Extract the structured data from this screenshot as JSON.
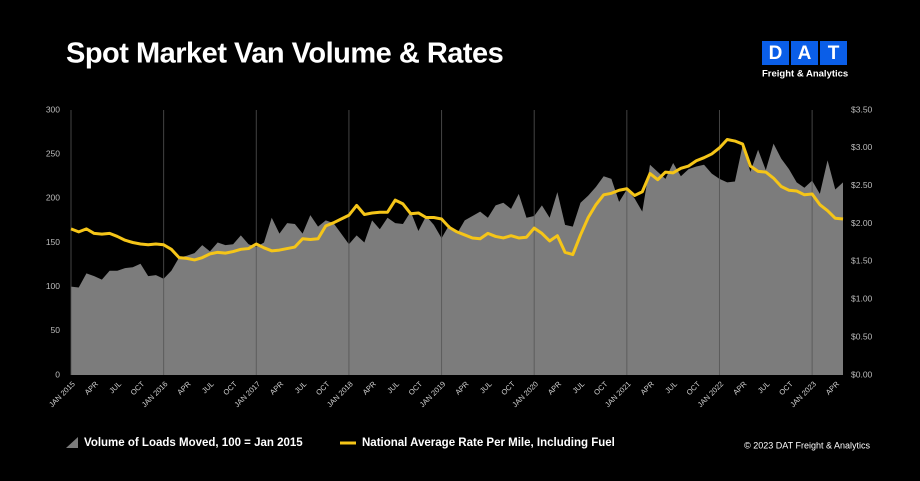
{
  "chart_data": {
    "type": "area-line",
    "title": "Spot Market Van Volume & Rates",
    "logo": {
      "letters": [
        "D",
        "A",
        "T"
      ],
      "subtitle": "Freight & Analytics"
    },
    "footer": "© 2023 DAT Freight & Analytics",
    "categories": [
      "JAN 2015",
      null,
      null,
      "APR",
      null,
      null,
      "JUL",
      null,
      null,
      "OCT",
      null,
      null,
      "JAN 2016",
      null,
      null,
      "APR",
      null,
      null,
      "JUL",
      null,
      null,
      "OCT",
      null,
      null,
      "JAN 2017",
      null,
      null,
      "APR",
      null,
      null,
      "JUL",
      null,
      null,
      "OCT",
      null,
      null,
      "JAN 2018",
      null,
      null,
      "APR",
      null,
      null,
      "JUL",
      null,
      null,
      "OCT",
      null,
      null,
      "JAN 2019",
      null,
      null,
      "APR",
      null,
      null,
      "JUL",
      null,
      null,
      "OCT",
      null,
      null,
      "JAN 2020",
      null,
      null,
      "APR",
      null,
      null,
      "JUL",
      null,
      null,
      "OCT",
      null,
      null,
      "JAN 2021",
      null,
      null,
      "APR",
      null,
      null,
      "JUL",
      null,
      null,
      "OCT",
      null,
      null,
      "JAN 2022",
      null,
      null,
      "APR",
      null,
      null,
      "JUL",
      null,
      null,
      "OCT",
      null,
      null,
      "JAN 2023",
      null,
      null,
      "APR",
      null
    ],
    "series": [
      {
        "name": "Volume of Loads Moved, 100 = Jan 2015",
        "color": "#7c7c7c",
        "kind": "area",
        "axis": "y",
        "values": [
          100,
          99,
          115,
          112,
          108,
          118,
          118,
          121,
          122,
          126,
          112,
          113,
          109,
          118,
          133,
          135,
          138,
          147,
          140,
          150,
          147,
          148,
          158,
          148,
          145,
          150,
          178,
          160,
          172,
          171,
          160,
          181,
          168,
          175,
          172,
          160,
          148,
          158,
          150,
          175,
          165,
          178,
          172,
          171,
          185,
          163,
          180,
          170,
          155,
          170,
          160,
          175,
          180,
          185,
          178,
          192,
          195,
          188,
          205,
          178,
          180,
          192,
          178,
          207,
          170,
          168,
          195,
          203,
          213,
          225,
          222,
          196,
          210,
          200,
          185,
          238,
          230,
          222,
          240,
          225,
          233,
          236,
          238,
          228,
          222,
          218,
          219,
          260,
          230,
          255,
          232,
          262,
          245,
          233,
          218,
          212,
          220,
          205,
          243,
          210,
          218
        ]
      },
      {
        "name": "National Average Rate Per Mile, Including Fuel",
        "color": "#f5c518",
        "kind": "line",
        "axis": "y2",
        "values": [
          1.93,
          1.89,
          1.93,
          1.87,
          1.86,
          1.87,
          1.83,
          1.78,
          1.75,
          1.73,
          1.72,
          1.73,
          1.72,
          1.66,
          1.55,
          1.54,
          1.52,
          1.55,
          1.6,
          1.62,
          1.61,
          1.63,
          1.66,
          1.67,
          1.73,
          1.68,
          1.64,
          1.65,
          1.67,
          1.69,
          1.8,
          1.79,
          1.8,
          1.97,
          2.01,
          2.06,
          2.11,
          2.24,
          2.12,
          2.14,
          2.15,
          2.15,
          2.31,
          2.26,
          2.13,
          2.14,
          2.08,
          2.08,
          2.06,
          1.95,
          1.89,
          1.85,
          1.81,
          1.8,
          1.87,
          1.83,
          1.81,
          1.84,
          1.81,
          1.82,
          1.94,
          1.87,
          1.77,
          1.84,
          1.62,
          1.59,
          1.85,
          2.08,
          2.25,
          2.38,
          2.4,
          2.44,
          2.46,
          2.37,
          2.42,
          2.66,
          2.58,
          2.68,
          2.67,
          2.73,
          2.76,
          2.83,
          2.87,
          2.92,
          3.0,
          3.11,
          3.09,
          3.05,
          2.76,
          2.69,
          2.68,
          2.6,
          2.49,
          2.44,
          2.43,
          2.38,
          2.39,
          2.25,
          2.17,
          2.07,
          2.06
        ]
      }
    ],
    "ylim": [
      0,
      300
    ],
    "yticks": [
      0,
      50,
      100,
      150,
      200,
      250,
      300
    ],
    "y2lim": [
      0,
      3.5
    ],
    "y2ticks": [
      {
        "value": 0,
        "label": "$0.00"
      },
      {
        "value": 0.5,
        "label": "$0.50"
      },
      {
        "value": 1,
        "label": "$1.00"
      },
      {
        "value": 1.5,
        "label": "$1.50"
      },
      {
        "value": 2,
        "label": "$2.00"
      },
      {
        "value": 2.5,
        "label": "$2.50"
      },
      {
        "value": 3,
        "label": "$3.00"
      },
      {
        "value": 3.5,
        "label": "$3.50"
      }
    ],
    "grid": true
  }
}
